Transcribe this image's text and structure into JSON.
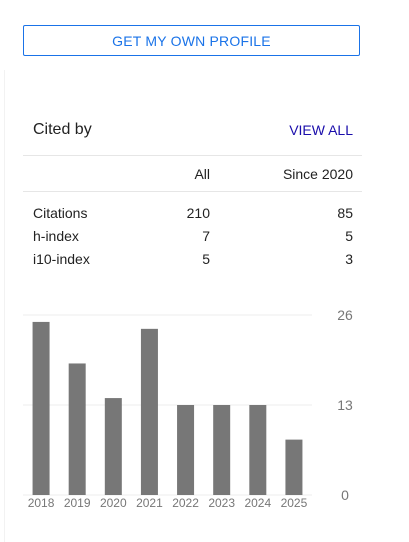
{
  "profile_button": {
    "label": "GET MY OWN PROFILE"
  },
  "cited_by": {
    "title": "Cited by",
    "view_all": "VIEW ALL",
    "headers": {
      "all": "All",
      "since": "Since 2020"
    },
    "rows": [
      {
        "label": "Citations",
        "all": "210",
        "since": "85"
      },
      {
        "label": "h-index",
        "all": "7",
        "since": "5"
      },
      {
        "label": "i10-index",
        "all": "5",
        "since": "3"
      }
    ]
  },
  "colors": {
    "accent": "#1a73e8",
    "link": "#1a0dab",
    "bar": "#777777"
  },
  "chart_data": {
    "type": "bar",
    "categories": [
      "2018",
      "2019",
      "2020",
      "2021",
      "2022",
      "2023",
      "2024",
      "2025"
    ],
    "values": [
      25,
      19,
      14,
      24,
      13,
      13,
      13,
      8
    ],
    "ylim": [
      0,
      26
    ],
    "yticks": [
      "26",
      "13",
      "0"
    ],
    "grid": true
  }
}
